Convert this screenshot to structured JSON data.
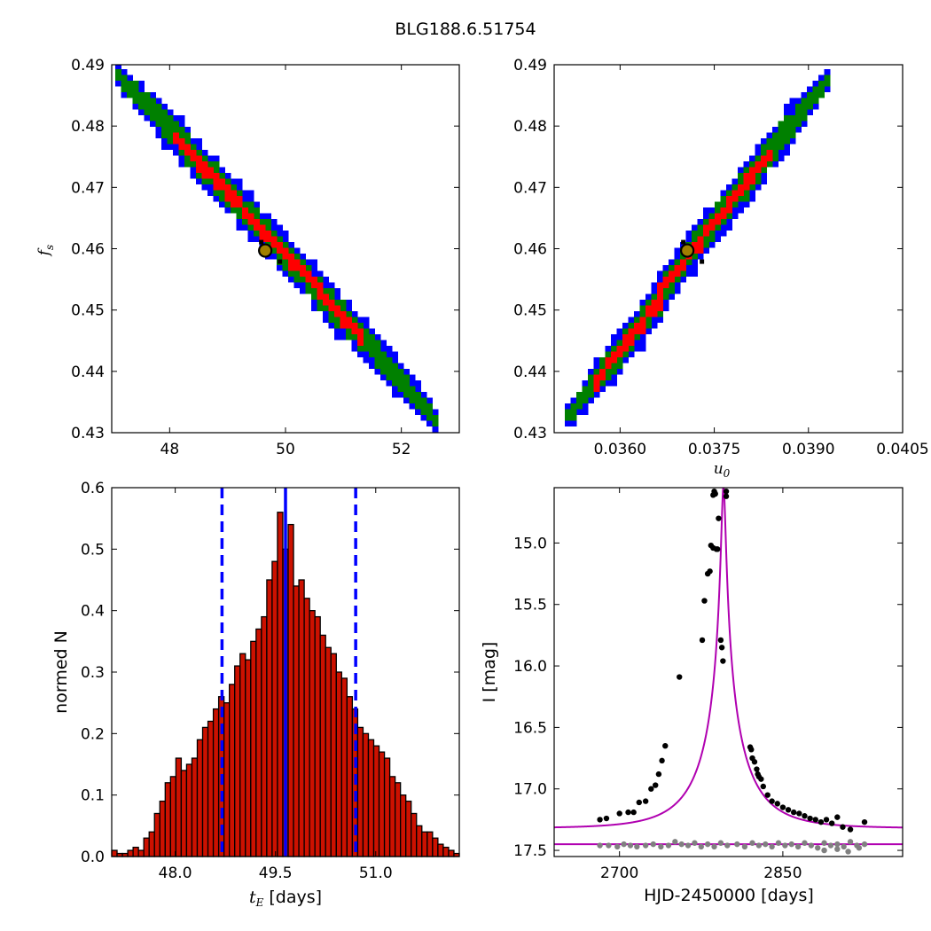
{
  "figure_title": "BLG188.6.51754",
  "colors": {
    "blue": "#0000ff",
    "green": "#008000",
    "red": "#ff0000",
    "hist_fill": "#cc1100",
    "marker_fill": "#a08000",
    "model": "#b000b0",
    "gray": "#808080"
  },
  "chart_data": [
    {
      "id": "tE_fs",
      "type": "heatmap",
      "description_of_contours": "blue/green/red confidence regions",
      "xlim": [
        47.0,
        53.0
      ],
      "ylim": [
        0.43,
        0.49
      ],
      "xticks": [
        48,
        50,
        52
      ],
      "xtick_labels": [
        "48",
        "50",
        "52"
      ],
      "yticks": [
        0.43,
        0.44,
        0.45,
        0.46,
        0.47,
        0.48,
        0.49
      ],
      "ytick_labels": [
        "0.43",
        "0.44",
        "0.45",
        "0.46",
        "0.47",
        "0.48",
        "0.49"
      ],
      "ylabel": "f_s",
      "xlabel": "",
      "best_fit": {
        "x": 49.65,
        "y": 0.4597
      },
      "band": {
        "x_start": 47.05,
        "y_start": 0.4885,
        "x_end": 52.5,
        "y_end": 0.4325,
        "blue_halfwidth": 0.0035,
        "green_halfwidth": 0.0022,
        "red_halfwidth": 0.0011,
        "red_x_start": 48.0,
        "red_x_end": 51.3
      }
    },
    {
      "id": "u0_fs",
      "type": "heatmap",
      "description_of_contours": "blue/green/red confidence regions",
      "xlim": [
        0.03495,
        0.0405
      ],
      "ylim": [
        0.43,
        0.49
      ],
      "xticks": [
        0.036,
        0.0375,
        0.039,
        0.0405
      ],
      "xtick_labels": [
        "0.0360",
        "0.0375",
        "0.0390",
        "0.0405"
      ],
      "yticks": [
        0.43,
        0.44,
        0.45,
        0.46,
        0.47,
        0.48,
        0.49
      ],
      "ytick_labels": [
        "0.43",
        "0.44",
        "0.45",
        "0.46",
        "0.47",
        "0.48",
        "0.49"
      ],
      "xlabel": "u_0",
      "ylabel": "",
      "best_fit": {
        "x": 0.03707,
        "y": 0.4597
      },
      "band": {
        "x_start": 0.0351,
        "y_start": 0.4325,
        "x_end": 0.03925,
        "y_end": 0.4875,
        "blue_halfwidth": 0.0035,
        "green_halfwidth": 0.0022,
        "red_halfwidth": 0.0011,
        "red_x_start": 0.0355,
        "red_x_end": 0.0384
      }
    },
    {
      "id": "tE_hist",
      "type": "bar",
      "xlim": [
        47.05,
        52.25
      ],
      "ylim": [
        0.0,
        0.6
      ],
      "xticks": [
        48.0,
        49.5,
        51.0
      ],
      "xtick_labels": [
        "48.0",
        "49.5",
        "51.0"
      ],
      "yticks": [
        0.0,
        0.1,
        0.2,
        0.3,
        0.4,
        0.5,
        0.6
      ],
      "ytick_labels": [
        "0.0",
        "0.1",
        "0.2",
        "0.3",
        "0.4",
        "0.5",
        "0.6"
      ],
      "xlabel_sym": "t_E",
      "xlabel_unit": "[days]",
      "ylabel": "normed N",
      "bin_start": 47.05,
      "bin_width": 0.08,
      "values": [
        0.01,
        0.005,
        0.005,
        0.01,
        0.015,
        0.01,
        0.03,
        0.04,
        0.07,
        0.09,
        0.12,
        0.13,
        0.16,
        0.14,
        0.15,
        0.16,
        0.19,
        0.21,
        0.22,
        0.24,
        0.26,
        0.25,
        0.28,
        0.31,
        0.33,
        0.32,
        0.35,
        0.37,
        0.39,
        0.45,
        0.48,
        0.56,
        0.5,
        0.54,
        0.44,
        0.45,
        0.42,
        0.4,
        0.39,
        0.36,
        0.34,
        0.33,
        0.3,
        0.29,
        0.26,
        0.24,
        0.21,
        0.2,
        0.19,
        0.18,
        0.17,
        0.16,
        0.13,
        0.12,
        0.1,
        0.09,
        0.07,
        0.05,
        0.04,
        0.04,
        0.03,
        0.02,
        0.015,
        0.01,
        0.005
      ],
      "median": 49.65,
      "lower": 48.7,
      "upper": 50.7
    },
    {
      "id": "lightcurve",
      "type": "scatter",
      "xlim": [
        2640,
        2960
      ],
      "ylim": [
        17.55,
        14.55
      ],
      "xticks": [
        2700,
        2850
      ],
      "xtick_labels": [
        "2700",
        "2850"
      ],
      "yticks": [
        15.0,
        15.5,
        16.0,
        16.5,
        17.0,
        17.5
      ],
      "ytick_labels": [
        "15.0",
        "15.5",
        "16.0",
        "16.5",
        "17.0",
        "17.5"
      ],
      "xlabel": "HJD-2450000 [days]",
      "ylabel": "I [mag]",
      "model": {
        "t0": 2795.5,
        "tE": 49.65,
        "u0": 0.03707,
        "fs": 0.4597,
        "baseline": 17.32
      },
      "residual_baseline": 17.45,
      "data_black": [
        [
          2682,
          17.25
        ],
        [
          2688,
          17.24
        ],
        [
          2700,
          17.2
        ],
        [
          2708,
          17.19
        ],
        [
          2713,
          17.19
        ],
        [
          2718,
          17.11
        ],
        [
          2724,
          17.1
        ],
        [
          2729,
          17.0
        ],
        [
          2733,
          16.97
        ],
        [
          2736,
          16.88
        ],
        [
          2739,
          16.77
        ],
        [
          2742,
          16.65
        ],
        [
          2755,
          16.09
        ],
        [
          2776,
          15.79
        ],
        [
          2778,
          15.47
        ],
        [
          2781,
          15.25
        ],
        [
          2783,
          15.23
        ],
        [
          2784,
          15.02
        ],
        [
          2786,
          15.04
        ],
        [
          2786,
          14.61
        ],
        [
          2787,
          14.58
        ],
        [
          2788,
          14.6
        ],
        [
          2789,
          15.05
        ],
        [
          2790,
          15.05
        ],
        [
          2791,
          14.8
        ],
        [
          2793,
          15.79
        ],
        [
          2794,
          15.85
        ],
        [
          2795,
          15.96
        ],
        [
          2798,
          14.62
        ],
        [
          2798,
          14.58
        ],
        [
          2820,
          16.66
        ],
        [
          2821,
          16.68
        ],
        [
          2822,
          16.75
        ],
        [
          2824,
          16.78
        ],
        [
          2826,
          16.84
        ],
        [
          2827,
          16.88
        ],
        [
          2828,
          16.9
        ],
        [
          2830,
          16.92
        ],
        [
          2832,
          16.98
        ],
        [
          2836,
          17.05
        ],
        [
          2840,
          17.1
        ],
        [
          2845,
          17.12
        ],
        [
          2850,
          17.15
        ],
        [
          2855,
          17.17
        ],
        [
          2860,
          17.19
        ],
        [
          2865,
          17.2
        ],
        [
          2870,
          17.22
        ],
        [
          2875,
          17.24
        ],
        [
          2880,
          17.25
        ],
        [
          2885,
          17.27
        ],
        [
          2890,
          17.25
        ],
        [
          2895,
          17.28
        ],
        [
          2900,
          17.23
        ],
        [
          2905,
          17.31
        ],
        [
          2912,
          17.33
        ],
        [
          2925,
          17.27
        ]
      ],
      "data_gray": [
        [
          2682,
          17.46
        ],
        [
          2690,
          17.46
        ],
        [
          2698,
          17.47
        ],
        [
          2704,
          17.45
        ],
        [
          2710,
          17.46
        ],
        [
          2716,
          17.47
        ],
        [
          2724,
          17.46
        ],
        [
          2731,
          17.45
        ],
        [
          2738,
          17.47
        ],
        [
          2745,
          17.46
        ],
        [
          2751,
          17.43
        ],
        [
          2757,
          17.45
        ],
        [
          2763,
          17.46
        ],
        [
          2769,
          17.44
        ],
        [
          2775,
          17.47
        ],
        [
          2781,
          17.45
        ],
        [
          2787,
          17.47
        ],
        [
          2793,
          17.44
        ],
        [
          2799,
          17.46
        ],
        [
          2808,
          17.45
        ],
        [
          2815,
          17.47
        ],
        [
          2822,
          17.44
        ],
        [
          2828,
          17.46
        ],
        [
          2834,
          17.45
        ],
        [
          2840,
          17.47
        ],
        [
          2846,
          17.44
        ],
        [
          2852,
          17.46
        ],
        [
          2858,
          17.45
        ],
        [
          2864,
          17.47
        ],
        [
          2870,
          17.44
        ],
        [
          2876,
          17.46
        ],
        [
          2882,
          17.48
        ],
        [
          2888,
          17.44
        ],
        [
          2894,
          17.46
        ],
        [
          2900,
          17.45
        ],
        [
          2906,
          17.47
        ],
        [
          2912,
          17.43
        ],
        [
          2918,
          17.46
        ],
        [
          2925,
          17.45
        ],
        [
          2888,
          17.5
        ],
        [
          2900,
          17.49
        ],
        [
          2910,
          17.51
        ],
        [
          2920,
          17.48
        ]
      ]
    }
  ]
}
